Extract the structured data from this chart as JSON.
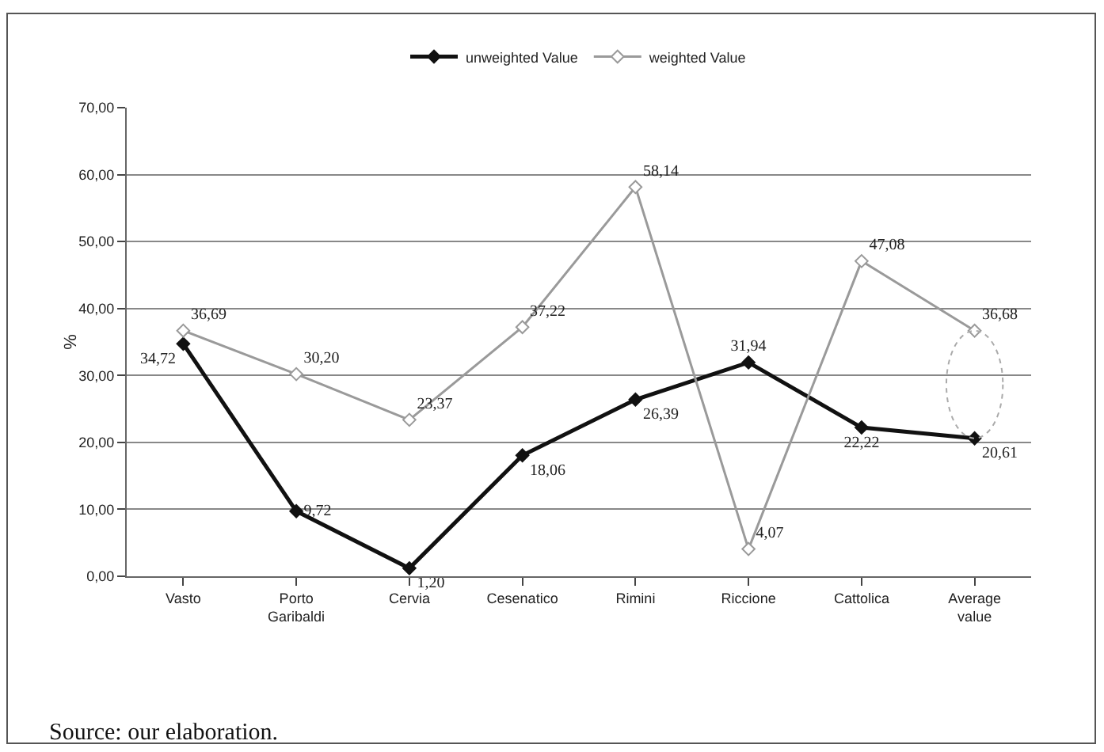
{
  "chart_data": {
    "type": "line",
    "ylabel": "%",
    "categories": [
      "Vasto",
      "Porto Garibaldi",
      "Cervia",
      "Cesenatico",
      "Rimini",
      "Riccione",
      "Cattolica",
      "Average value"
    ],
    "series": [
      {
        "name": "unweighted Value",
        "color": "#111111",
        "values": [
          34.72,
          9.72,
          1.2,
          18.06,
          26.39,
          31.94,
          22.22,
          20.61
        ],
        "value_labels": [
          "34,72",
          "9,72",
          "1,20",
          "18,06",
          "26,39",
          "31,94",
          "22,22",
          "20,61"
        ]
      },
      {
        "name": "weighted Value",
        "color": "#9a9a9a",
        "values": [
          36.69,
          30.2,
          23.37,
          37.22,
          58.14,
          4.07,
          47.08,
          36.68
        ],
        "value_labels": [
          "36,69",
          "30,20",
          "23,37",
          "37,22",
          "58,14",
          "4,07",
          "47,08",
          "36,68"
        ]
      }
    ],
    "ylim": [
      0,
      70
    ],
    "yticks": [
      {
        "value": 0,
        "label": "0,00"
      },
      {
        "value": 10,
        "label": "10,00"
      },
      {
        "value": 20,
        "label": "20,00"
      },
      {
        "value": 30,
        "label": "30,00"
      },
      {
        "value": 40,
        "label": "40,00"
      },
      {
        "value": 50,
        "label": "50,00"
      },
      {
        "value": 60,
        "label": "60,00"
      },
      {
        "value": 70,
        "label": "70,00"
      }
    ],
    "grid": "y",
    "legend": "top",
    "marker": "diamond",
    "line_style": "solid",
    "annotations": [
      "Source: our elaboration."
    ]
  }
}
